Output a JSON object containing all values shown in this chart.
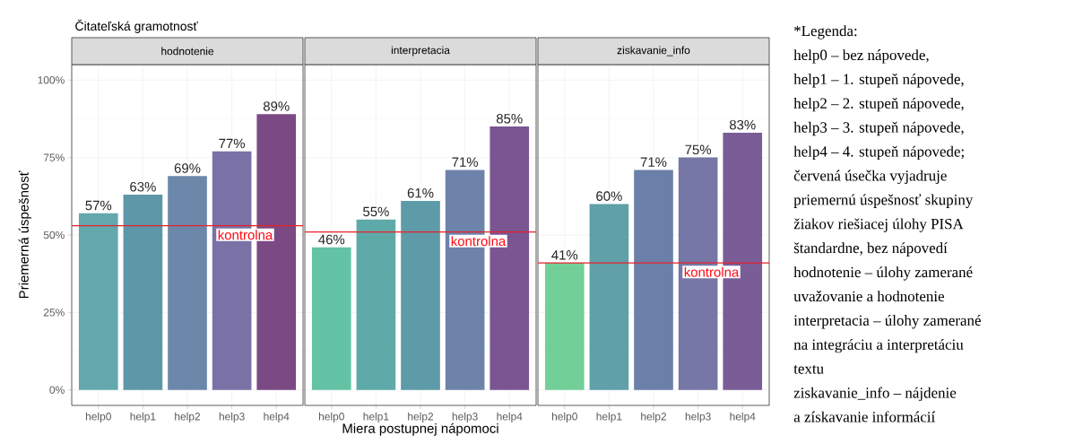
{
  "chart_data": [
    {
      "type": "bar",
      "title": "Čitateľská gramotnosť",
      "subtitle": "hodnotenie",
      "ylabel": "Priemerná úspešnosť",
      "categories": [
        "help0",
        "help1",
        "help2",
        "help3",
        "help4"
      ],
      "values": [
        57,
        63,
        69,
        77,
        89
      ],
      "colors": [
        "#62a8ad",
        "#5d97a8",
        "#6b88ab",
        "#7a72a6",
        "#7b4a85"
      ],
      "value_labels": [
        "57%",
        "63%",
        "69%",
        "77%",
        "89%"
      ],
      "ylim": [
        -5,
        105
      ],
      "yticks": [
        {
          "value": 0,
          "label": "0%"
        },
        {
          "value": 25,
          "label": "25%"
        },
        {
          "value": 50,
          "label": "50%"
        },
        {
          "value": 75,
          "label": "75%"
        },
        {
          "value": 100,
          "label": "100%"
        }
      ],
      "grid": true,
      "ref_lines": [
        {
          "axis": "y",
          "value": 53,
          "label": "kontrolna",
          "color": "#e8202a"
        }
      ]
    },
    {
      "type": "bar",
      "subtitle": "interpretacia",
      "xlabel": "Miera postupnej nápomoci",
      "categories": [
        "help0",
        "help1",
        "help2",
        "help3",
        "help4"
      ],
      "values": [
        46,
        55,
        61,
        71,
        85
      ],
      "colors": [
        "#63c3a4",
        "#5eaaa9",
        "#5d9ba8",
        "#6e83aa",
        "#7b5592"
      ],
      "value_labels": [
        "46%",
        "55%",
        "61%",
        "71%",
        "85%"
      ],
      "ylim": [
        -5,
        105
      ],
      "yticks": [
        {
          "value": 0,
          "label": null
        },
        {
          "value": 25,
          "label": null
        },
        {
          "value": 50,
          "label": null
        },
        {
          "value": 75,
          "label": null
        },
        {
          "value": 100,
          "label": null
        }
      ],
      "grid": true,
      "tick_labels": "x",
      "ref_lines": [
        {
          "axis": "y",
          "value": 51,
          "label": "kontrolna",
          "color": "#e8202a"
        }
      ]
    },
    {
      "type": "bar",
      "subtitle": "ziskavanie_info",
      "categories": [
        "help0",
        "help1",
        "help2",
        "help3",
        "help4"
      ],
      "values": [
        41,
        60,
        71,
        75,
        83
      ],
      "colors": [
        "#73cf98",
        "#5fa0a9",
        "#6b80a8",
        "#7677a6",
        "#7a5c97"
      ],
      "value_labels": [
        "41%",
        "60%",
        "71%",
        "75%",
        "83%"
      ],
      "ylim": [
        -5,
        105
      ],
      "yticks": [
        {
          "value": 0,
          "label": null
        },
        {
          "value": 25,
          "label": null
        },
        {
          "value": 50,
          "label": null
        },
        {
          "value": 75,
          "label": null
        },
        {
          "value": 100,
          "label": null
        }
      ],
      "grid": true,
      "tick_labels": "x",
      "ref_lines": [
        {
          "axis": "y",
          "value": 41,
          "label": "kontrolna",
          "color": "#e8202a"
        }
      ]
    },
    {
      "type": "other",
      "annotations": [
        "*Legenda:",
        "help0 – bez nápovede,",
        "help1 – 1. stupeň nápovede,",
        "help2 – 2. stupeň nápovede,",
        "help3 – 3. stupeň nápovede,",
        "help4 – 4. stupeň nápovede;",
        "červená úsečka vyjadruje",
        "priemernú úspešnosť skupiny",
        "žiakov riešiacej úlohy PISA",
        "štandardne, bez nápovedí",
        "hodnotenie – úlohy zamerané",
        "uvažovanie a hodnotenie",
        "interpretacia – úlohy zamerané",
        "na integráciu a interpretáciu",
        "textu",
        "ziskavanie_info – nájdenie",
        "a získavanie informácií"
      ]
    }
  ]
}
